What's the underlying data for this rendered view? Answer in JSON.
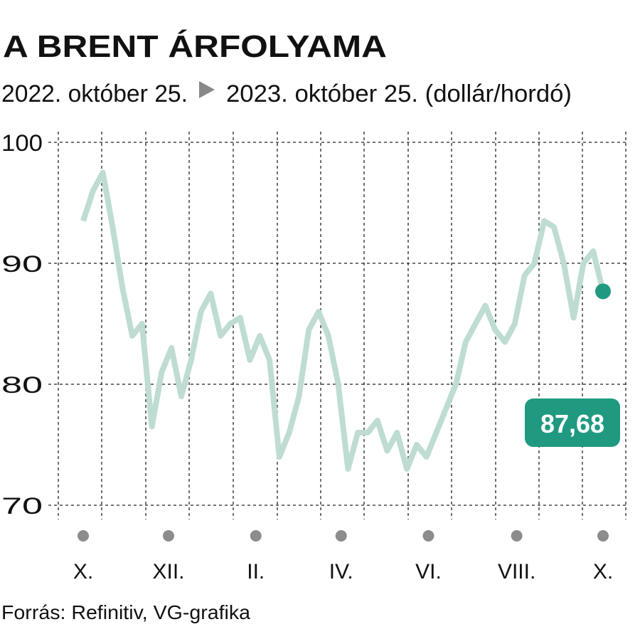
{
  "chart_data": {
    "type": "line",
    "title": "A BRENT ÁRFOLYAMA",
    "subtitle_start": "2022. október 25.",
    "subtitle_end": "2023. október 25. (dollár/hordó)",
    "source": "Forrás: Refinitiv, VG-grafika",
    "categories": [
      null,
      null,
      null,
      null,
      null,
      null,
      null,
      null,
      null,
      null,
      null,
      null,
      null,
      null,
      null,
      null,
      null,
      null,
      null,
      null,
      null,
      null,
      null,
      null,
      null,
      null,
      null,
      null,
      null,
      null,
      null,
      null,
      null,
      null,
      null,
      null,
      null,
      null,
      null,
      null,
      null,
      null,
      null,
      null,
      null,
      null,
      null,
      null,
      null,
      null,
      null,
      null,
      null,
      null
    ],
    "series": [
      {
        "name": "Brent",
        "color": "#bfdcd2",
        "values": [
          93.5,
          96,
          97.5,
          93,
          88,
          84,
          85,
          76.5,
          81,
          83,
          79,
          82,
          86,
          87.5,
          84,
          85,
          85.5,
          82,
          84,
          82,
          74,
          76,
          79,
          84.5,
          86,
          84,
          80,
          73,
          76,
          76,
          77,
          74.5,
          76,
          73,
          75,
          74,
          76,
          78,
          80,
          83.5,
          85,
          86.5,
          84.5,
          83.5,
          85,
          89,
          90,
          93.5,
          93,
          90,
          85.5,
          90,
          91,
          87.68
        ],
        "value_labels": [
          null,
          null,
          null,
          null,
          null,
          null,
          null,
          null,
          null,
          null,
          null,
          null,
          null,
          null,
          null,
          null,
          null,
          null,
          null,
          null,
          null,
          null,
          null,
          null,
          null,
          null,
          null,
          null,
          null,
          null,
          null,
          null,
          null,
          null,
          null,
          null,
          null,
          null,
          null,
          null,
          null,
          null,
          null,
          null,
          null,
          null,
          null,
          null,
          null,
          null,
          null,
          null,
          null,
          "87,68"
        ]
      }
    ],
    "end_color": "#1f9a80",
    "xlim": [
      0,
      53
    ],
    "xticks": [
      {
        "value": 0,
        "label": "X."
      },
      {
        "value": 8.7,
        "label": "XII."
      },
      {
        "value": 17.6,
        "label": "II."
      },
      {
        "value": 26.3,
        "label": "IV."
      },
      {
        "value": 35.2,
        "label": "VI."
      },
      {
        "value": 44.2,
        "label": "VIII."
      },
      {
        "value": 53,
        "label": "X."
      }
    ],
    "ylim": [
      70,
      100
    ],
    "yticks": [
      70,
      80,
      90,
      100
    ],
    "grid": true
  }
}
